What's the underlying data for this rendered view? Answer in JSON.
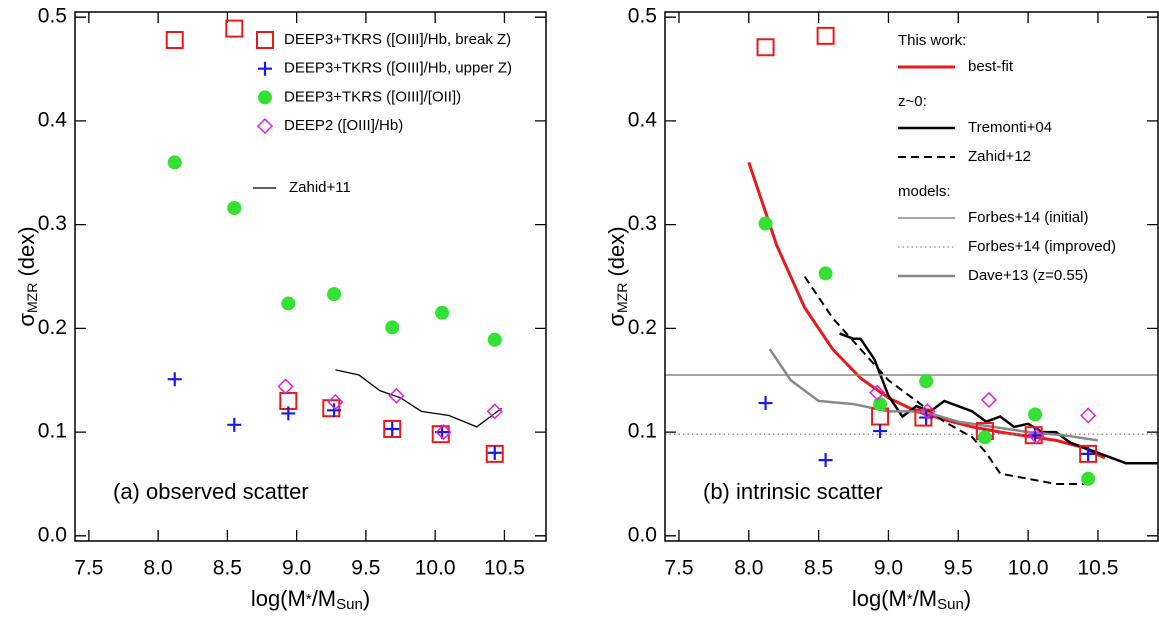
{
  "chart_data": [
    {
      "type": "scatter",
      "xlim": [
        7.4,
        10.8
      ],
      "ylim": [
        -0.005,
        0.505
      ],
      "xticks": [
        7.5,
        {
          "value": 8.0,
          "label": "8.0"
        },
        8.5,
        {
          "value": 9.0,
          "label": "9.0"
        },
        9.5,
        {
          "value": 10.0,
          "label": "10.0"
        },
        10.5
      ],
      "yticks": [
        {
          "value": 0,
          "label": "0.0"
        },
        0.1,
        0.2,
        0.3,
        0.4,
        0.5
      ],
      "xlabel": [
        "log(M",
        "*",
        "/M",
        "Sun",
        ")"
      ],
      "ylabel": [
        "σ",
        "MZR",
        " (dex)"
      ],
      "annotation": "(a) observed scatter",
      "series": [
        {
          "name": "DEEP3+TKRS ([OIII]/Hb, break Z)",
          "color": "#e8191c",
          "marker": "square",
          "x": [
            8.12,
            8.55,
            8.94,
            9.25,
            9.69,
            10.04,
            10.43
          ],
          "values": [
            0.478,
            0.489,
            0.13,
            0.123,
            0.103,
            0.098,
            0.079
          ]
        },
        {
          "name": "DEEP3+TKRS ([OIII]/Hb, upper Z)",
          "color": "#1a1ae6",
          "marker": "plus",
          "x": [
            8.12,
            8.55,
            8.94,
            9.27,
            9.69,
            10.05,
            10.43
          ],
          "values": [
            0.151,
            0.107,
            0.118,
            0.121,
            0.103,
            0.1,
            0.08
          ]
        },
        {
          "name": "DEEP3+TKRS ([OIII]/[OII])",
          "color": "#33e033",
          "marker": "circle",
          "x": [
            8.12,
            8.55,
            8.94,
            9.27,
            9.69,
            10.05,
            10.43
          ],
          "values": [
            0.36,
            0.316,
            0.224,
            0.233,
            0.201,
            0.215,
            0.189
          ]
        },
        {
          "name": "DEEP2 ([OIII]/Hb)",
          "color": "#e020e0",
          "marker": "diamond",
          "x": [
            8.92,
            9.28,
            9.72,
            10.06,
            10.43
          ],
          "values": [
            0.144,
            0.129,
            0.135,
            0.1,
            0.12
          ]
        }
      ],
      "line_groups": [
        {
          "series": [
            {
              "name": "Zahid+11",
              "color": "#000000",
              "style": "solid",
              "width": 1.3,
              "x": [
                9.28,
                9.45,
                9.6,
                9.75,
                9.9,
                10.1,
                10.3,
                10.48
              ],
              "values": [
                0.16,
                0.155,
                0.14,
                0.133,
                0.12,
                0.116,
                0.105,
                0.123
              ]
            }
          ]
        }
      ]
    },
    {
      "type": "scatter",
      "xlim": [
        7.4,
        10.93
      ],
      "ylim": [
        -0.005,
        0.505
      ],
      "xticks": [
        7.5,
        {
          "value": 8.0,
          "label": "8.0"
        },
        8.5,
        {
          "value": 9.0,
          "label": "9.0"
        },
        9.5,
        {
          "value": 10.0,
          "label": "10.0"
        },
        10.5
      ],
      "yticks": [
        {
          "value": 0,
          "label": "0.0"
        },
        0.1,
        0.2,
        0.3,
        0.4,
        0.5
      ],
      "xlabel": [
        "log(M",
        "*",
        "/M",
        "Sun",
        ")"
      ],
      "ylabel": [
        "σ",
        "MZR",
        " (dex)"
      ],
      "annotation": "(b) intrinsic scatter",
      "series": [
        {
          "color": "#e8191c",
          "marker": "square",
          "x": [
            8.12,
            8.55,
            8.94,
            9.25,
            9.69,
            10.04,
            10.43
          ],
          "values": [
            0.471,
            0.482,
            0.115,
            0.114,
            0.101,
            0.097,
            0.079
          ]
        },
        {
          "color": "#1a1ae6",
          "marker": "plus",
          "x": [
            8.12,
            8.55,
            8.94,
            9.27,
            9.69,
            10.05,
            10.43
          ],
          "values": [
            0.128,
            0.073,
            0.101,
            0.114,
            0.096,
            0.097,
            0.079
          ]
        },
        {
          "color": "#33e033",
          "marker": "circle",
          "x": [
            8.12,
            8.55,
            8.94,
            9.27,
            9.69,
            10.05,
            10.43
          ],
          "values": [
            0.301,
            0.253,
            0.127,
            0.149,
            0.095,
            0.117,
            0.055
          ]
        },
        {
          "color": "#e020e0",
          "marker": "diamond",
          "x": [
            8.92,
            9.28,
            9.72,
            10.06,
            10.43
          ],
          "values": [
            0.138,
            0.12,
            0.131,
            0.096,
            0.116
          ]
        }
      ],
      "line_groups": [
        {
          "heading": "This work:",
          "series": [
            {
              "name": "best-fit",
              "color": "#e8191c",
              "style": "solid",
              "width": 3,
              "x": [
                8.0,
                8.2,
                8.4,
                8.6,
                8.8,
                9.0,
                9.2,
                9.4,
                9.6,
                9.8,
                10.0,
                10.2,
                10.4,
                10.55
              ],
              "values": [
                0.36,
                0.28,
                0.22,
                0.18,
                0.152,
                0.133,
                0.12,
                0.112,
                0.105,
                0.1,
                0.096,
                0.092,
                0.085,
                0.075
              ]
            }
          ]
        },
        {
          "heading": "z~0:",
          "series": [
            {
              "name": "Tremonti+04",
              "color": "#000000",
              "style": "solid",
              "width": 2.5,
              "x": [
                8.65,
                8.75,
                8.8,
                8.9,
                9.0,
                9.1,
                9.2,
                9.3,
                9.4,
                9.5,
                9.6,
                9.7,
                9.8,
                9.9,
                10.0,
                10.1,
                10.2,
                10.3,
                10.4,
                10.5,
                10.7,
                10.93
              ],
              "values": [
                0.195,
                0.19,
                0.19,
                0.17,
                0.135,
                0.115,
                0.125,
                0.12,
                0.13,
                0.125,
                0.12,
                0.11,
                0.115,
                0.105,
                0.108,
                0.1,
                0.1,
                0.09,
                0.085,
                0.08,
                0.07,
                0.07
              ]
            },
            {
              "name": "Zahid+12",
              "color": "#000000",
              "style": "dashed",
              "width": 2,
              "x": [
                8.4,
                8.6,
                8.8,
                9.0,
                9.2,
                9.4,
                9.6,
                9.7,
                9.8,
                10.0,
                10.2,
                10.4
              ],
              "values": [
                0.25,
                0.21,
                0.18,
                0.15,
                0.13,
                0.11,
                0.095,
                0.08,
                0.06,
                0.055,
                0.05,
                0.05
              ]
            }
          ]
        },
        {
          "heading": "models:",
          "series": [
            {
              "name": "Forbes+14 (initial)",
              "color": "#888888",
              "style": "solid",
              "width": 1.5,
              "x": [
                7.4,
                10.93
              ],
              "values": [
                0.155,
                0.155
              ]
            },
            {
              "name": "Forbes+14 (improved)",
              "color": "#888888",
              "style": "dotted",
              "width": 1.3,
              "x": [
                7.4,
                10.93
              ],
              "values": [
                0.098,
                0.098
              ]
            },
            {
              "name": "Dave+13 (z=0.55)",
              "color": "#888888",
              "style": "solid",
              "width": 2.5,
              "x": [
                8.15,
                8.3,
                8.5,
                8.75,
                9.0,
                9.25,
                9.5,
                9.75,
                10.0,
                10.25,
                10.5
              ],
              "values": [
                0.18,
                0.15,
                0.13,
                0.127,
                0.12,
                0.12,
                0.11,
                0.105,
                0.1,
                0.097,
                0.092
              ]
            }
          ]
        }
      ]
    }
  ]
}
